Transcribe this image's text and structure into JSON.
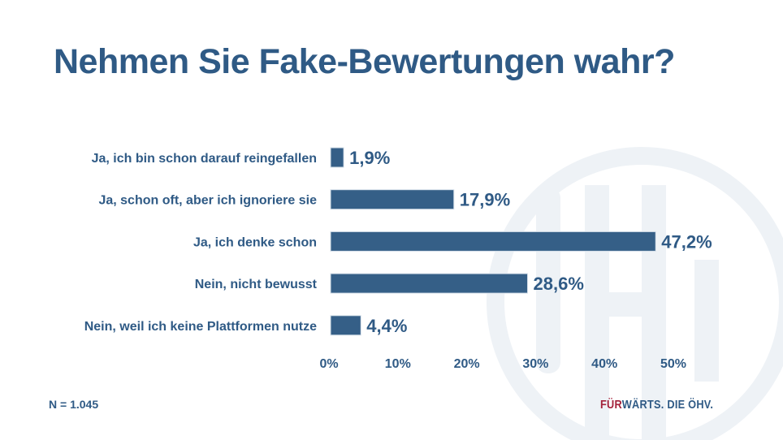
{
  "title": "Nehmen Sie Fake-Bewertungen wahr?",
  "sample_size": "N = 1.045",
  "brand": {
    "part1": "FÜR",
    "part2": "WÄRTS. DIE ÖHV.",
    "color_accent": "#a3213a",
    "color_main": "#2f5a85"
  },
  "watermark_logo": "ÖHV",
  "colors": {
    "bar": "#355f87",
    "text": "#2f5a85",
    "watermark": "#eef2f6"
  },
  "chart_data": {
    "type": "bar",
    "orientation": "horizontal",
    "title": "Nehmen Sie Fake-Bewertungen wahr?",
    "categories": [
      "Ja, ich bin schon darauf reingefallen",
      "Ja, schon oft, aber ich ignoriere sie",
      "Ja, ich denke schon",
      "Nein, nicht bewusst",
      "Nein, weil ich keine Plattformen nutze"
    ],
    "values": [
      1.9,
      17.9,
      47.2,
      28.6,
      4.4
    ],
    "data_labels": [
      "1,9%",
      "17,9%",
      "47,2%",
      "28,6%",
      "4,4%"
    ],
    "xlabel": "",
    "ylabel": "",
    "xlim": [
      0,
      50
    ],
    "xticks": [
      0,
      10,
      20,
      30,
      40,
      50
    ],
    "xtick_labels": [
      "0%",
      "10%",
      "20%",
      "30%",
      "40%",
      "50%"
    ],
    "grid": false,
    "legend": "none",
    "note": "N = 1.045"
  }
}
